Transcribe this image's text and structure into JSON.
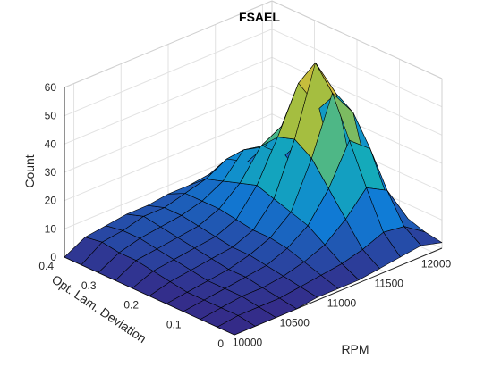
{
  "chart_data": {
    "type": "surface",
    "title": "FSAEL",
    "xlabel": "RPM",
    "ylabel": "Opt. Lam. Deviation",
    "zlabel": "Count",
    "x_ticks": [
      "10000",
      "10500",
      "11000",
      "11500",
      "12000"
    ],
    "y_ticks": [
      "0",
      "0.1",
      "0.2",
      "0.3",
      "0.4"
    ],
    "z_ticks": [
      "0",
      "10",
      "20",
      "30",
      "40",
      "50",
      "60"
    ],
    "xlim": [
      9900,
      12100
    ],
    "ylim": [
      0,
      0.4
    ],
    "zlim": [
      0,
      60
    ],
    "grid": true,
    "colormap": "parula",
    "x": [
      9900,
      10120,
      10340,
      10560,
      10780,
      11000,
      11220,
      11440,
      11660,
      11880,
      12100
    ],
    "y": [
      0,
      0.04,
      0.08,
      0.12,
      0.16,
      0.2,
      0.24,
      0.28,
      0.32,
      0.36,
      0.4
    ],
    "z": [
      [
        0,
        0,
        0,
        0,
        1,
        1,
        1,
        2,
        3,
        4,
        2
      ],
      [
        0,
        1,
        1,
        1,
        2,
        3,
        4,
        6,
        9,
        8,
        3
      ],
      [
        0,
        1,
        2,
        2,
        3,
        5,
        8,
        14,
        22,
        18,
        5
      ],
      [
        0,
        1,
        2,
        3,
        4,
        7,
        12,
        22,
        36,
        30,
        6
      ],
      [
        0,
        1,
        2,
        3,
        5,
        8,
        14,
        30,
        50,
        40,
        6
      ],
      [
        0,
        2,
        3,
        4,
        5,
        8,
        16,
        34,
        58,
        44,
        5
      ],
      [
        0,
        3,
        4,
        5,
        6,
        9,
        18,
        32,
        48,
        36,
        4
      ],
      [
        0,
        4,
        5,
        6,
        7,
        10,
        16,
        26,
        30,
        22,
        3
      ],
      [
        0,
        4,
        6,
        7,
        8,
        10,
        14,
        22,
        20,
        14,
        2
      ],
      [
        0,
        5,
        6,
        8,
        8,
        10,
        12,
        16,
        12,
        8,
        1
      ],
      [
        0,
        4,
        5,
        6,
        6,
        7,
        7,
        8,
        6,
        4,
        0
      ]
    ]
  }
}
